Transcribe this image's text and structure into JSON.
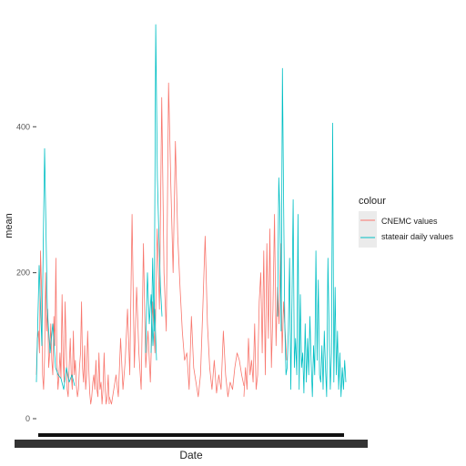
{
  "chart_data": {
    "type": "line",
    "xlabel": "Date",
    "ylabel": "mean",
    "ylim": [
      0,
      540
    ],
    "yticks": [
      0,
      200,
      400
    ],
    "legend": {
      "title": "colour",
      "placement": "right"
    },
    "series": [
      {
        "name": "CNEMC values",
        "color": "#F8766D",
        "segments": [
          [
            60,
            110,
            120,
            90,
            230,
            180,
            60,
            40,
            85,
            200,
            120,
            150,
            70,
            90,
            130,
            80,
            60,
            140,
            100,
            220,
            80,
            40,
            60,
            90,
            55,
            170,
            85,
            50,
            160,
            100,
            40,
            30,
            75,
            110,
            60,
            40,
            120,
            60,
            80,
            45,
            30,
            40,
            70,
            90,
            160,
            70,
            50,
            100,
            40,
            60,
            120,
            70,
            35,
            20,
            30,
            50,
            60,
            40,
            80,
            40,
            30,
            90,
            40,
            50,
            20,
            40,
            90,
            40,
            20,
            30,
            60,
            20
          ],
          [
            30,
            20,
            40,
            60,
            30,
            110,
            40,
            80,
            150,
            60,
            280,
            70,
            180,
            90,
            40,
            240,
            70,
            120,
            50,
            160,
            90,
            260,
            150,
            440,
            200,
            120,
            460,
            320,
            200,
            380,
            250,
            180,
            120,
            80,
            90,
            40,
            140,
            70,
            50,
            30,
            60,
            150,
            250,
            130,
            70,
            40,
            80,
            35,
            60,
            40,
            120,
            60,
            30,
            50,
            40,
            70,
            90,
            80,
            60,
            45
          ],
          [
            30,
            70,
            40,
            110,
            60,
            80,
            50,
            130,
            40,
            60,
            160,
            200,
            90,
            230,
            60,
            240,
            110,
            260,
            70,
            150,
            280,
            100,
            180,
            130,
            240,
            90,
            160,
            120,
            80
          ]
        ]
      },
      {
        "name": "stateair daily values",
        "color": "#00BFC4",
        "segments": [
          [
            50,
            210,
            100,
            370,
            150,
            90,
            130,
            70,
            60,
            55,
            40,
            70,
            50,
            60,
            45
          ],
          [
            90,
            200,
            130,
            170,
            100,
            150,
            80
          ],
          [
            90,
            220,
            120,
            540,
            330,
            250,
            180,
            140
          ],
          [
            140,
            330,
            280,
            120,
            480,
            300,
            130,
            60,
            70,
            120,
            220,
            40,
            160,
            300,
            70,
            110,
            60,
            280,
            40,
            170,
            70,
            90,
            35,
            130,
            50,
            110,
            60,
            140,
            80,
            30,
            100,
            60,
            230,
            80,
            190,
            60,
            50,
            100,
            40,
            120,
            70,
            30,
            220,
            120,
            40,
            90,
            405,
            50,
            180,
            60,
            120,
            40,
            90,
            30,
            70,
            40,
            80,
            50
          ]
        ]
      }
    ]
  }
}
